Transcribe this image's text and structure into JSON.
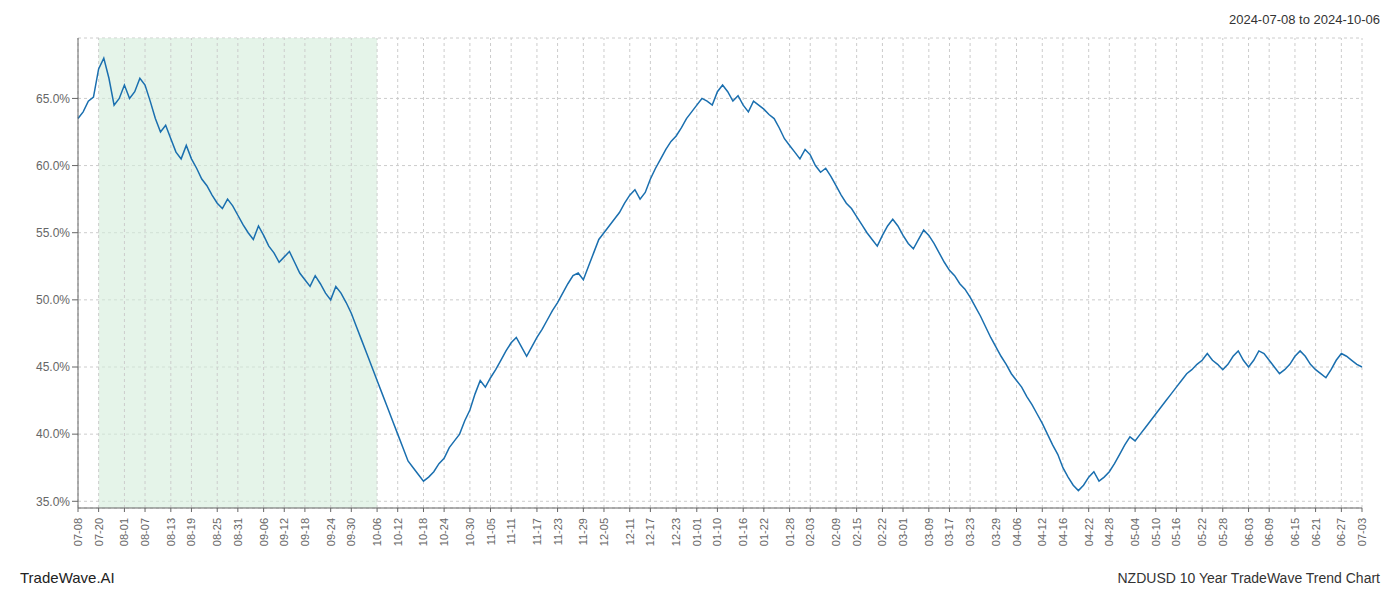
{
  "chart_data": {
    "type": "line",
    "title": "NZDUSD 10 Year TradeWave Trend Chart",
    "subtitle": "2024-07-08 to 2024-10-06",
    "annotations": [
      "TradeWave.AI"
    ],
    "color": "#1a6faf",
    "grid": true,
    "shaded_range": {
      "start": 4,
      "end": 58,
      "color": "#d4edda"
    },
    "ylim": [
      0.345,
      0.695
    ],
    "yticks": [
      {
        "value": 0.35,
        "label": "35.0%"
      },
      {
        "value": 0.4,
        "label": "40.0%"
      },
      {
        "value": 0.45,
        "label": "45.0%"
      },
      {
        "value": 0.5,
        "label": "50.0%"
      },
      {
        "value": 0.55,
        "label": "55.0%"
      },
      {
        "value": 0.6,
        "label": "60.0%"
      },
      {
        "value": 0.65,
        "label": "65.0%"
      }
    ],
    "categories": [
      "07-08",
      null,
      null,
      null,
      "07-20",
      null,
      null,
      null,
      null,
      "08-01",
      null,
      null,
      null,
      "08-07",
      null,
      null,
      null,
      null,
      "08-13",
      null,
      null,
      null,
      "08-19",
      null,
      null,
      null,
      null,
      "08-25",
      null,
      null,
      null,
      "08-31",
      null,
      null,
      null,
      null,
      "09-06",
      null,
      null,
      null,
      "09-12",
      null,
      null,
      null,
      "09-18",
      null,
      null,
      null,
      null,
      "09-24",
      null,
      null,
      null,
      "09-30",
      null,
      null,
      null,
      null,
      "10-06",
      null,
      null,
      null,
      "10-12",
      null,
      null,
      null,
      null,
      "10-18",
      null,
      null,
      null,
      "10-24",
      null,
      null,
      null,
      null,
      "10-30",
      null,
      null,
      null,
      "11-05",
      null,
      null,
      null,
      "11-11",
      null,
      null,
      null,
      null,
      "11-17",
      null,
      null,
      null,
      "11-23",
      null,
      null,
      null,
      null,
      "11-29",
      null,
      null,
      null,
      "12-05",
      null,
      null,
      null,
      null,
      "12-11",
      null,
      null,
      null,
      "12-17",
      null,
      null,
      null,
      null,
      "12-23",
      null,
      null,
      null,
      "01-01",
      null,
      null,
      null,
      "01-10",
      null,
      null,
      null,
      null,
      "01-16",
      null,
      null,
      null,
      "01-22",
      null,
      null,
      null,
      null,
      "01-28",
      null,
      null,
      null,
      "02-03",
      null,
      null,
      null,
      null,
      "02-09",
      null,
      null,
      null,
      "02-15",
      null,
      null,
      null,
      null,
      "02-22",
      null,
      null,
      null,
      "03-01",
      null,
      null,
      null,
      null,
      "03-09",
      null,
      null,
      null,
      "03-17",
      null,
      null,
      null,
      "03-23",
      null,
      null,
      null,
      null,
      "03-29",
      null,
      null,
      null,
      "04-06",
      null,
      null,
      null,
      null,
      "04-12",
      null,
      null,
      null,
      "04-16",
      null,
      null,
      null,
      null,
      "04-22",
      null,
      null,
      null,
      "04-28",
      null,
      null,
      null,
      null,
      "05-04",
      null,
      null,
      null,
      "05-10",
      null,
      null,
      null,
      "05-16",
      null,
      null,
      null,
      null,
      "05-22",
      null,
      null,
      null,
      "05-28",
      null,
      null,
      null,
      null,
      "06-03",
      null,
      null,
      null,
      "06-09",
      null,
      null,
      null,
      null,
      "06-15",
      null,
      null,
      null,
      "06-21",
      null,
      null,
      null,
      null,
      "06-27",
      null,
      null,
      null,
      "07-03"
    ],
    "values": [
      0.635,
      0.64,
      0.648,
      0.651,
      0.672,
      0.68,
      0.665,
      0.645,
      0.65,
      0.66,
      0.65,
      0.655,
      0.665,
      0.66,
      0.648,
      0.635,
      0.625,
      0.63,
      0.62,
      0.61,
      0.605,
      0.615,
      0.605,
      0.598,
      0.59,
      0.585,
      0.578,
      0.572,
      0.568,
      0.575,
      0.57,
      0.563,
      0.556,
      0.55,
      0.545,
      0.555,
      0.548,
      0.54,
      0.535,
      0.528,
      0.532,
      0.536,
      0.528,
      0.52,
      0.515,
      0.51,
      0.518,
      0.512,
      0.505,
      0.5,
      0.51,
      0.505,
      0.498,
      0.49,
      0.48,
      0.47,
      0.46,
      0.45,
      0.44,
      0.43,
      0.42,
      0.41,
      0.4,
      0.39,
      0.38,
      0.375,
      0.37,
      0.365,
      0.368,
      0.372,
      0.378,
      0.382,
      0.39,
      0.395,
      0.4,
      0.41,
      0.418,
      0.43,
      0.44,
      0.435,
      0.442,
      0.448,
      0.455,
      0.462,
      0.468,
      0.472,
      0.465,
      0.458,
      0.465,
      0.472,
      0.478,
      0.485,
      0.492,
      0.498,
      0.505,
      0.512,
      0.518,
      0.52,
      0.515,
      0.525,
      0.535,
      0.545,
      0.55,
      0.555,
      0.56,
      0.565,
      0.572,
      0.578,
      0.582,
      0.575,
      0.58,
      0.59,
      0.598,
      0.605,
      0.612,
      0.618,
      0.622,
      0.628,
      0.635,
      0.64,
      0.645,
      0.65,
      0.648,
      0.645,
      0.655,
      0.66,
      0.655,
      0.648,
      0.652,
      0.645,
      0.64,
      0.648,
      0.645,
      0.642,
      0.638,
      0.635,
      0.628,
      0.62,
      0.615,
      0.61,
      0.605,
      0.612,
      0.608,
      0.6,
      0.595,
      0.598,
      0.592,
      0.585,
      0.578,
      0.572,
      0.568,
      0.562,
      0.556,
      0.55,
      0.545,
      0.54,
      0.548,
      0.555,
      0.56,
      0.555,
      0.548,
      0.542,
      0.538,
      0.545,
      0.552,
      0.548,
      0.542,
      0.535,
      0.528,
      0.522,
      0.518,
      0.512,
      0.508,
      0.502,
      0.495,
      0.488,
      0.48,
      0.472,
      0.465,
      0.458,
      0.452,
      0.445,
      0.44,
      0.435,
      0.428,
      0.422,
      0.415,
      0.408,
      0.4,
      0.392,
      0.385,
      0.375,
      0.368,
      0.362,
      0.358,
      0.362,
      0.368,
      0.372,
      0.365,
      0.368,
      0.372,
      0.378,
      0.385,
      0.392,
      0.398,
      0.395,
      0.4,
      0.405,
      0.41,
      0.415,
      0.42,
      0.425,
      0.43,
      0.435,
      0.44,
      0.445,
      0.448,
      0.452,
      0.455,
      0.46,
      0.455,
      0.452,
      0.448,
      0.452,
      0.458,
      0.462,
      0.455,
      0.45,
      0.455,
      0.462,
      0.46,
      0.455,
      0.45,
      0.445,
      0.448,
      0.452,
      0.458,
      0.462,
      0.458,
      0.452,
      0.448,
      0.445,
      0.442,
      0.448,
      0.455,
      0.46,
      0.458,
      0.455,
      0.452,
      0.45
    ]
  }
}
